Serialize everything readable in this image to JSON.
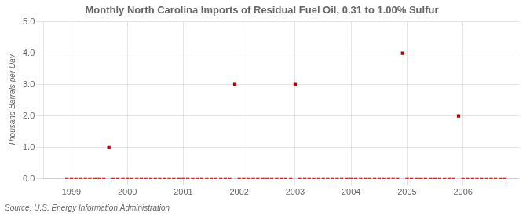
{
  "chart_data": {
    "type": "scatter",
    "title": "Monthly North Carolina Imports of Residual Fuel Oil, 0.31 to 1.00% Sulfur",
    "ylabel": "Thousand Barrels per Day",
    "annotations": [
      "Source: U.S. Energy Information Administration"
    ],
    "color": "#BB0000",
    "marker": "square",
    "grid": true,
    "xlim": [
      1998.5,
      2007.0
    ],
    "xticks": [
      1999,
      2000,
      2001,
      2002,
      2003,
      2004,
      2005,
      2006
    ],
    "ylim": [
      0.0,
      5.0
    ],
    "yticks": [
      {
        "value": 0.0,
        "label": "0.0"
      },
      {
        "value": 1.0,
        "label": "1.0"
      },
      {
        "value": 2.0,
        "label": "2.0"
      },
      {
        "value": 3.0,
        "label": "3.0"
      },
      {
        "value": 4.0,
        "label": "4.0"
      },
      {
        "value": 5.0,
        "label": "5.0"
      }
    ],
    "x": [
      1999.67,
      1998.92,
      1999.0,
      1999.08,
      1999.17,
      1999.25,
      1999.33,
      1999.42,
      1999.5,
      1999.58,
      1999.75,
      1999.83,
      1999.92,
      2000.0,
      2000.08,
      2000.17,
      2000.25,
      2000.33,
      2000.42,
      2000.5,
      2000.58,
      2000.67,
      2000.75,
      2000.83,
      2000.92,
      2001.0,
      2001.08,
      2001.17,
      2001.25,
      2001.33,
      2001.42,
      2001.5,
      2001.58,
      2001.67,
      2001.75,
      2001.83,
      2001.92,
      2002.0,
      2002.08,
      2002.17,
      2002.25,
      2002.33,
      2002.42,
      2002.5,
      2002.58,
      2002.67,
      2002.75,
      2002.83,
      2002.92,
      2003.0,
      2003.08,
      2003.17,
      2003.25,
      2003.33,
      2003.42,
      2003.5,
      2003.58,
      2003.67,
      2003.75,
      2003.83,
      2003.92,
      2004.0,
      2004.08,
      2004.17,
      2004.25,
      2004.33,
      2004.42,
      2004.5,
      2004.58,
      2004.67,
      2004.75,
      2004.83,
      2004.92,
      2005.0,
      2005.08,
      2005.17,
      2005.25,
      2005.33,
      2005.42,
      2005.5,
      2005.58,
      2005.67,
      2005.75,
      2005.83,
      2005.92,
      2006.0,
      2006.08,
      2006.17,
      2006.25,
      2006.33,
      2006.42,
      2006.5,
      2006.58,
      2006.67,
      2006.75
    ],
    "values": [
      1.0,
      0.0,
      0.0,
      0.0,
      0.0,
      0.0,
      0.0,
      0.0,
      0.0,
      0.0,
      0.0,
      0.0,
      0.0,
      0.0,
      0.0,
      0.0,
      0.0,
      0.0,
      0.0,
      0.0,
      0.0,
      0.0,
      0.0,
      0.0,
      0.0,
      0.0,
      0.0,
      0.0,
      0.0,
      0.0,
      0.0,
      0.0,
      0.0,
      0.0,
      0.0,
      0.0,
      3.0,
      0.0,
      0.0,
      0.0,
      0.0,
      0.0,
      0.0,
      0.0,
      0.0,
      0.0,
      0.0,
      0.0,
      0.0,
      3.0,
      0.0,
      0.0,
      0.0,
      0.0,
      0.0,
      0.0,
      0.0,
      0.0,
      0.0,
      0.0,
      0.0,
      0.0,
      0.0,
      0.0,
      0.0,
      0.0,
      0.0,
      0.0,
      0.0,
      0.0,
      0.0,
      0.0,
      4.0,
      0.0,
      0.0,
      0.0,
      0.0,
      0.0,
      0.0,
      0.0,
      0.0,
      0.0,
      0.0,
      0.0,
      2.0,
      0.0,
      0.0,
      0.0,
      0.0,
      0.0,
      0.0,
      0.0,
      0.0,
      0.0,
      0.0
    ]
  }
}
